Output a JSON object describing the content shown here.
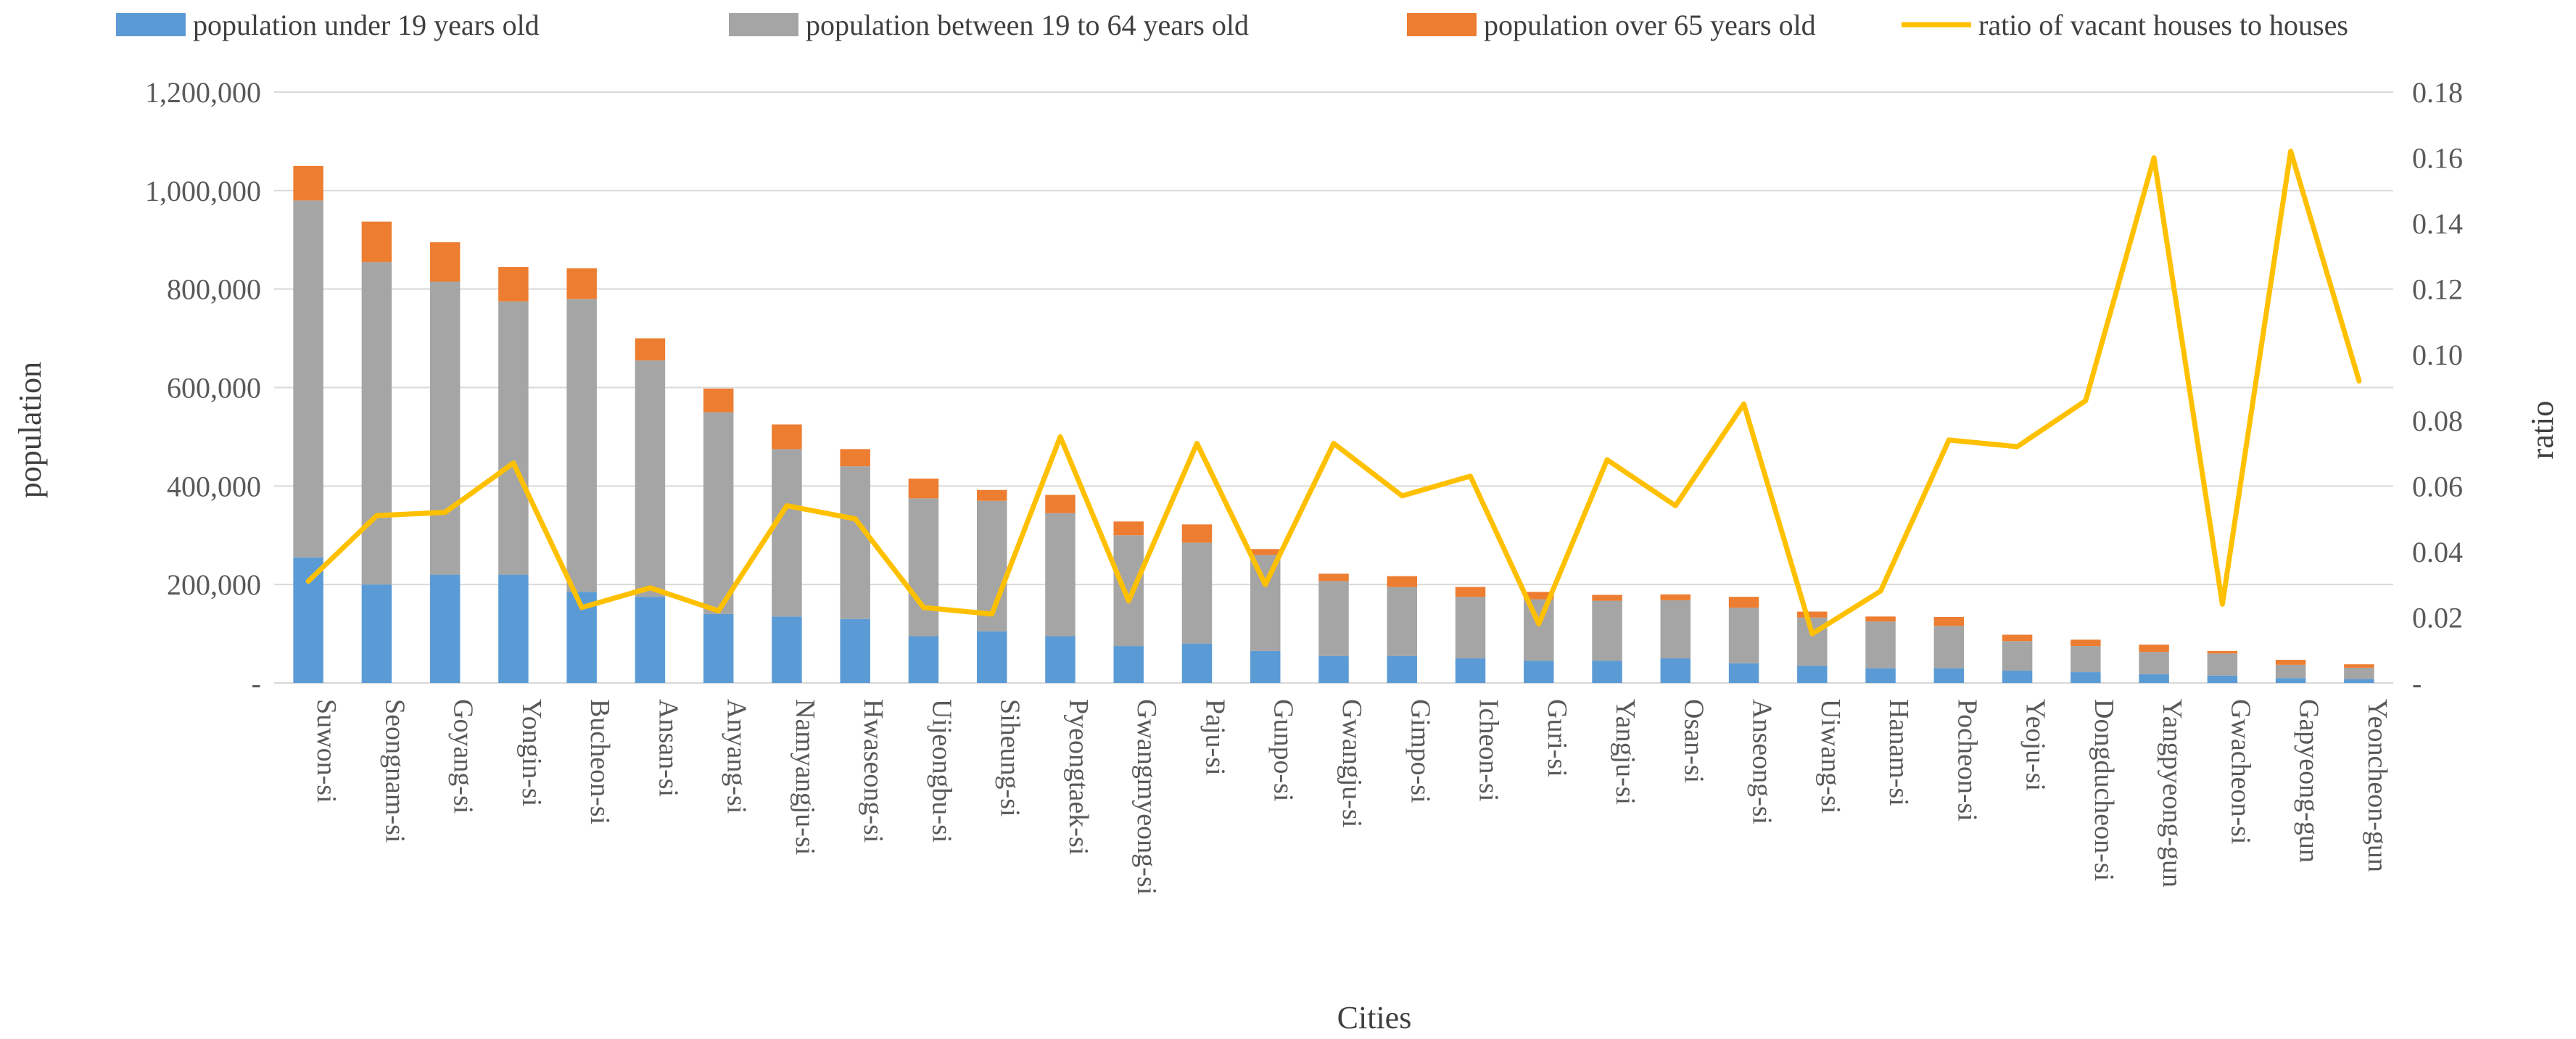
{
  "chart_data": {
    "type": "bar",
    "stacked": true,
    "xlabel": "Cities",
    "ylabel": "population",
    "y2label": "ratio",
    "ylim": [
      0,
      1200000
    ],
    "y2lim": [
      0,
      0.18
    ],
    "yticks": [
      0,
      200000,
      400000,
      600000,
      800000,
      1000000,
      1200000
    ],
    "ytick_labels": [
      "-",
      "200,000",
      "400,000",
      "600,000",
      "800,000",
      "1,000,000",
      "1,200,000"
    ],
    "y2ticks": [
      0,
      0.02,
      0.04,
      0.06,
      0.08,
      0.1,
      0.12,
      0.14,
      0.16,
      0.18
    ],
    "y2tick_labels": [
      "-",
      "0.02",
      "0.04",
      "0.06",
      "0.08",
      "0.10",
      "0.12",
      "0.14",
      "0.16",
      "0.18"
    ],
    "legend_position": "top",
    "categories": [
      "Suwon-si",
      "Seongnam-si",
      "Goyang-si",
      "Yongin-si",
      "Bucheon-si",
      "Ansan-si",
      "Anyang-si",
      "Namyangju-si",
      "Hwaseong-si",
      "Uijeongbu-si",
      "Siheung-si",
      "Pyeongtaek-si",
      "Gwangmyeong-si",
      "Paju-si",
      "Gunpo-si",
      "Gwangju-si",
      "Gimpo-si",
      "Icheon-si",
      "Guri-si",
      "Yangju-si",
      "Osan-si",
      "Anseong-si",
      "Uiwang-si",
      "Hanam-si",
      "Pocheon-si",
      "Yeoju-si",
      "Dongducheon-si",
      "Yangpyeong-gun",
      "Gwacheon-si",
      "Gapyeong-gun",
      "Yeoncheon-gun"
    ],
    "series": [
      {
        "name": "population under 19 years old",
        "kind": "bar",
        "color": "#5b9bd5",
        "values": [
          255000,
          200000,
          220000,
          220000,
          185000,
          175000,
          140000,
          135000,
          130000,
          95000,
          105000,
          95000,
          75000,
          80000,
          65000,
          55000,
          55000,
          50000,
          45000,
          45000,
          50000,
          40000,
          35000,
          30000,
          30000,
          25000,
          22000,
          18000,
          15000,
          10000,
          8000
        ]
      },
      {
        "name": "population between 19 to 64 years old",
        "kind": "bar",
        "color": "#a5a5a5",
        "values": [
          725000,
          655000,
          595000,
          555000,
          595000,
          480000,
          410000,
          340000,
          310000,
          280000,
          265000,
          250000,
          225000,
          205000,
          195000,
          152000,
          140000,
          125000,
          125000,
          122000,
          118000,
          113000,
          98000,
          95000,
          86000,
          60000,
          53000,
          45000,
          45000,
          27000,
          23000
        ]
      },
      {
        "name": "population over 65 years old",
        "kind": "bar",
        "color": "#ed7d31",
        "values": [
          70000,
          82000,
          80000,
          70000,
          62000,
          45000,
          48000,
          50000,
          35000,
          40000,
          22000,
          37000,
          28000,
          37000,
          12000,
          15000,
          22000,
          20000,
          15000,
          12000,
          12000,
          22000,
          12000,
          10000,
          18000,
          13000,
          13000,
          15000,
          5000,
          10000,
          7000
        ]
      },
      {
        "name": "ratio of vacant houses to houses",
        "kind": "line",
        "axis": "y2",
        "color": "#ffc000",
        "values": [
          0.031,
          0.051,
          0.052,
          0.067,
          0.023,
          0.029,
          0.022,
          0.054,
          0.05,
          0.023,
          0.021,
          0.075,
          0.025,
          0.073,
          0.03,
          0.073,
          0.057,
          0.063,
          0.018,
          0.068,
          0.054,
          0.085,
          0.015,
          0.028,
          0.074,
          0.072,
          0.086,
          0.16,
          0.024,
          0.162,
          0.092
        ]
      }
    ]
  }
}
